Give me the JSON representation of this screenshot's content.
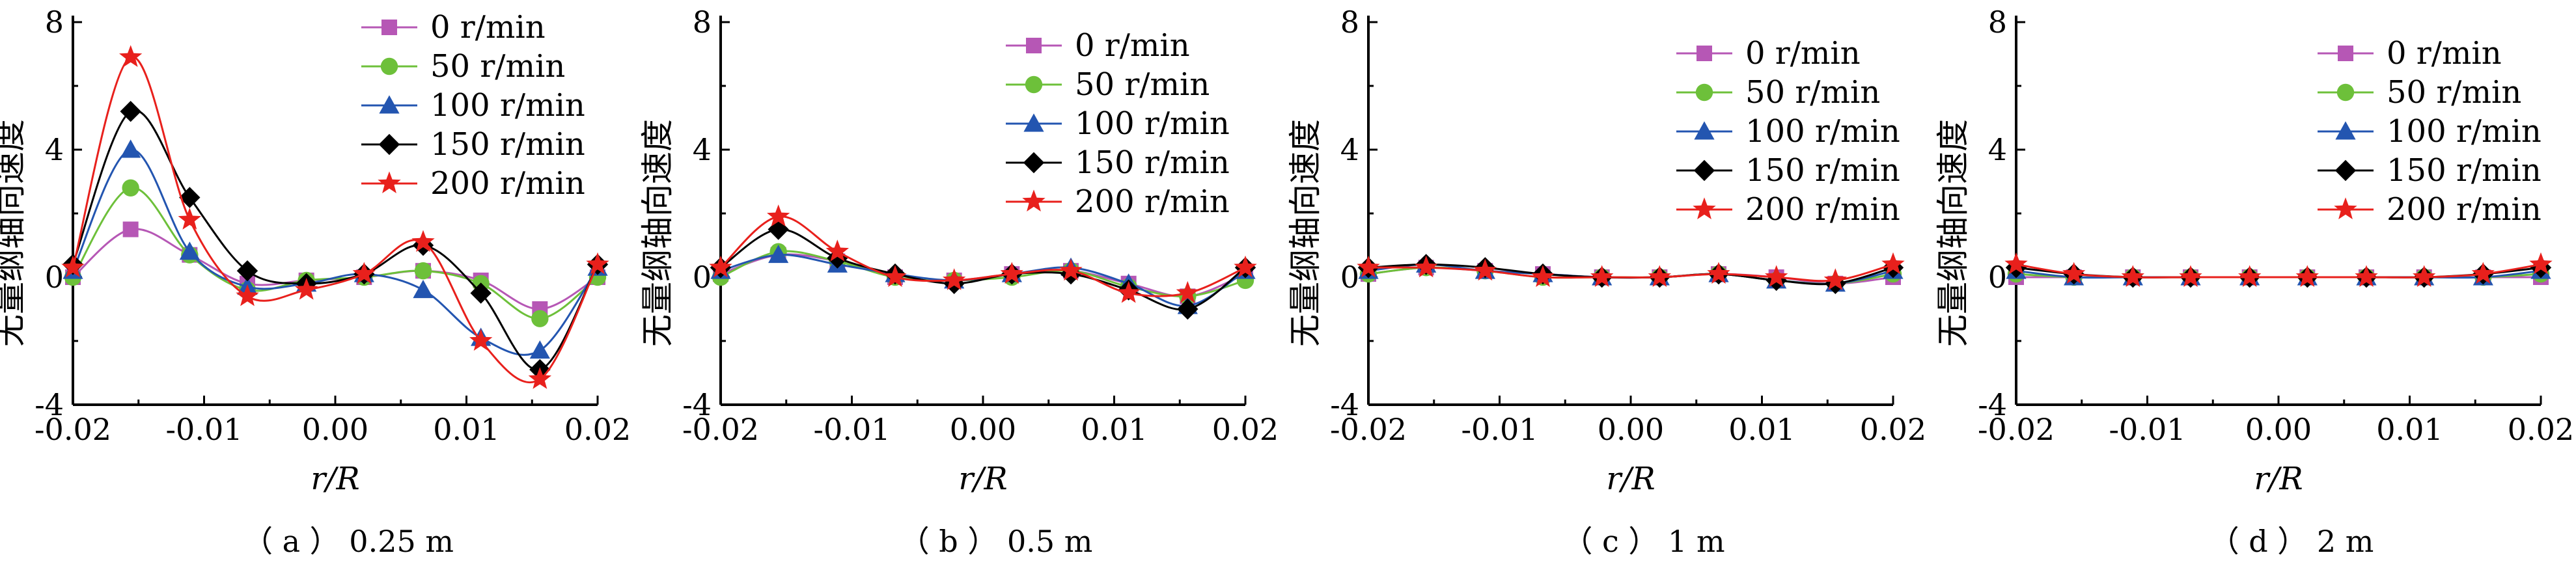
{
  "chart_data": [
    {
      "type": "line",
      "caption": "（ a ） 0.25 m",
      "xlabel": "r/R",
      "ylabel": "无量纲轴向速度",
      "xlim": [
        -0.02,
        0.02
      ],
      "ylim": [
        -4,
        8
      ],
      "xticks": [
        "-0.02",
        "-0.01",
        "0.00",
        "0.01",
        "0.02"
      ],
      "yticks": [
        "8",
        "4",
        "0",
        "-4"
      ],
      "legend_position": "top-right",
      "x": [
        -0.02,
        -0.0156,
        -0.0111,
        -0.0067,
        -0.0022,
        0.0022,
        0.0067,
        0.0111,
        0.0156,
        0.02
      ],
      "series": [
        {
          "name": "0 r/min",
          "values": [
            0,
            1.5,
            0.7,
            -0.2,
            -0.1,
            0.0,
            0.2,
            -0.1,
            -1.0,
            0.0
          ]
        },
        {
          "name": "50 r/min",
          "values": [
            0,
            2.8,
            0.7,
            -0.4,
            -0.1,
            0.0,
            0.2,
            -0.2,
            -1.3,
            0.0
          ]
        },
        {
          "name": "100 r/min",
          "values": [
            0.2,
            4.0,
            0.8,
            -0.3,
            -0.2,
            0.1,
            -0.4,
            -1.9,
            -2.3,
            0.3
          ]
        },
        {
          "name": "150 r/min",
          "values": [
            0.4,
            5.2,
            2.5,
            0.2,
            -0.2,
            0.1,
            1.0,
            -0.5,
            -2.9,
            0.4
          ]
        },
        {
          "name": "200 r/min",
          "values": [
            0.3,
            6.9,
            1.8,
            -0.6,
            -0.4,
            0.1,
            1.1,
            -2.0,
            -3.2,
            0.4
          ]
        }
      ]
    },
    {
      "type": "line",
      "caption": "（ b ） 0.5 m",
      "xlabel": "r/R",
      "ylabel": "无量纲轴向速度",
      "xlim": [
        -0.02,
        0.02
      ],
      "ylim": [
        -4,
        8
      ],
      "xticks": [
        "-0.02",
        "-0.01",
        "0.00",
        "0.01",
        "0.02"
      ],
      "yticks": [
        "8",
        "4",
        "0",
        "-4"
      ],
      "legend_position": "top-right",
      "x": [
        -0.02,
        -0.0156,
        -0.0111,
        -0.0067,
        -0.0022,
        0.0022,
        0.0067,
        0.0111,
        0.0156,
        0.02
      ],
      "series": [
        {
          "name": "0 r/min",
          "values": [
            0.1,
            0.7,
            0.5,
            0.0,
            -0.1,
            0.1,
            0.2,
            -0.2,
            -0.6,
            0.1
          ]
        },
        {
          "name": "50 r/min",
          "values": [
            0.0,
            0.8,
            0.5,
            0.0,
            -0.1,
            0.0,
            0.2,
            -0.3,
            -0.6,
            -0.1
          ]
        },
        {
          "name": "100 r/min",
          "values": [
            0.2,
            0.7,
            0.4,
            0.1,
            -0.1,
            0.1,
            0.3,
            -0.2,
            -0.9,
            0.2
          ]
        },
        {
          "name": "150 r/min",
          "values": [
            0.3,
            1.5,
            0.6,
            0.1,
            -0.2,
            0.1,
            0.1,
            -0.4,
            -1.0,
            0.3
          ]
        },
        {
          "name": "200 r/min",
          "values": [
            0.3,
            1.9,
            0.8,
            0.0,
            -0.1,
            0.1,
            0.2,
            -0.5,
            -0.5,
            0.3
          ]
        }
      ]
    },
    {
      "type": "line",
      "caption": "（ c ） 1 m",
      "xlabel": "r/R",
      "ylabel": "无量纲轴向速度",
      "xlim": [
        -0.02,
        0.02
      ],
      "ylim": [
        -4,
        8
      ],
      "xticks": [
        "-0.02",
        "-0.01",
        "0.00",
        "0.01",
        "0.02"
      ],
      "yticks": [
        "8",
        "4",
        "0",
        "-4"
      ],
      "legend_position": "top-right",
      "x": [
        -0.02,
        -0.0156,
        -0.0111,
        -0.0067,
        -0.0022,
        0.0022,
        0.0067,
        0.0111,
        0.0156,
        0.02
      ],
      "series": [
        {
          "name": "0 r/min",
          "values": [
            0.1,
            0.3,
            0.2,
            0.1,
            0.0,
            0.0,
            0.1,
            0.0,
            -0.2,
            0.0
          ]
        },
        {
          "name": "50 r/min",
          "values": [
            0.1,
            0.3,
            0.2,
            0.0,
            0.0,
            0.0,
            0.1,
            -0.1,
            -0.2,
            0.1
          ]
        },
        {
          "name": "100 r/min",
          "values": [
            0.2,
            0.4,
            0.2,
            0.1,
            0.0,
            0.0,
            0.1,
            -0.1,
            -0.2,
            0.2
          ]
        },
        {
          "name": "150 r/min",
          "values": [
            0.3,
            0.4,
            0.3,
            0.1,
            0.0,
            0.0,
            0.1,
            -0.1,
            -0.2,
            0.3
          ]
        },
        {
          "name": "200 r/min",
          "values": [
            0.3,
            0.3,
            0.2,
            0.0,
            0.0,
            0.0,
            0.1,
            0.0,
            -0.1,
            0.4
          ]
        }
      ]
    },
    {
      "type": "line",
      "caption": "（ d ） 2 m",
      "xlabel": "r/R",
      "ylabel": "无量纲轴向速度",
      "xlim": [
        -0.02,
        0.02
      ],
      "ylim": [
        -4,
        8
      ],
      "xticks": [
        "-0.02",
        "-0.01",
        "0.00",
        "0.01",
        "0.02"
      ],
      "yticks": [
        "8",
        "4",
        "0",
        "-4"
      ],
      "legend_position": "top-right",
      "x": [
        -0.02,
        -0.0156,
        -0.0111,
        -0.0067,
        -0.0022,
        0.0022,
        0.0067,
        0.0111,
        0.0156,
        0.02
      ],
      "series": [
        {
          "name": "0 r/min",
          "values": [
            0.0,
            0.0,
            0.0,
            0.0,
            0.0,
            0.0,
            0.0,
            0.0,
            0.0,
            0.0
          ]
        },
        {
          "name": "50 r/min",
          "values": [
            0.1,
            0.0,
            0.0,
            0.0,
            0.0,
            0.0,
            0.0,
            0.0,
            0.0,
            0.1
          ]
        },
        {
          "name": "100 r/min",
          "values": [
            0.2,
            0.0,
            0.0,
            0.0,
            0.0,
            0.0,
            0.0,
            0.0,
            0.0,
            0.2
          ]
        },
        {
          "name": "150 r/min",
          "values": [
            0.3,
            0.1,
            0.0,
            0.0,
            0.0,
            0.0,
            0.0,
            0.0,
            0.1,
            0.3
          ]
        },
        {
          "name": "200 r/min",
          "values": [
            0.4,
            0.1,
            0.0,
            0.0,
            0.0,
            0.0,
            0.0,
            0.0,
            0.1,
            0.4
          ]
        }
      ]
    }
  ],
  "series_style": [
    {
      "color": "#b657b5",
      "marker": "square"
    },
    {
      "color": "#6dc03a",
      "marker": "circle"
    },
    {
      "color": "#2355b0",
      "marker": "triangle"
    },
    {
      "color": "#000000",
      "marker": "diamond"
    },
    {
      "color": "#e8201c",
      "marker": "star"
    }
  ]
}
